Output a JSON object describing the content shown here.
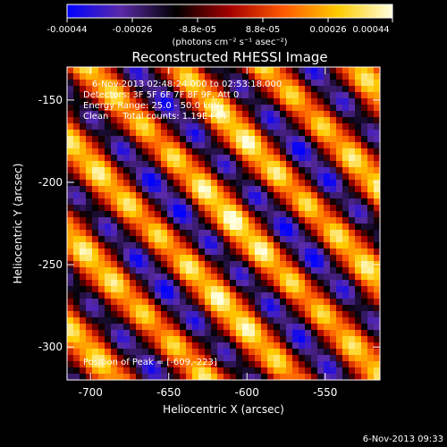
{
  "colorbar": {
    "ticks": [
      "-0.00044",
      "-0.00026",
      "-8.8e-05",
      "8.8e-05",
      "0.00026",
      "0.00044"
    ],
    "unit_label": "(photons cm⁻² s⁻¹ asec⁻²)",
    "range": [
      -0.00044,
      0.00044
    ],
    "colors": [
      "#0000ff",
      "#5a2aa8",
      "#000000",
      "#a40000",
      "#ff5a00",
      "#ffcc00",
      "#ffffe0"
    ]
  },
  "chart_data": {
    "type": "heatmap",
    "title": "Reconstructed RHESSI Image",
    "xlabel": "Heliocentric X (arcsec)",
    "ylabel": "Heliocentric Y (arcsec)",
    "xlim": [
      -715,
      -515
    ],
    "ylim": [
      -320,
      -130
    ],
    "xticks": [
      -700,
      -650,
      -600,
      -550
    ],
    "yticks": [
      -300,
      -250,
      -200,
      -150
    ],
    "xtick_labels": [
      "-700",
      "-650",
      "-600",
      "-550"
    ],
    "ytick_labels": [
      "-300",
      "-250",
      "-200",
      "-150"
    ],
    "annotations": [
      "6-Nov-2013 02:48:24.000 to 02:53:18.000",
      "Detectors: 3F 5F 6F 7F 8F 9F, Att 0",
      "Energy Range: 25.0 - 50.0 keV",
      "Clean     Total counts: 1.19E+04"
    ],
    "peak_label": "Position of Peak = [-609,-223]",
    "peak": [
      -609,
      -223
    ],
    "pattern": "diagonal fringes running from upper-left to lower-right, alternating positive (yellow/white) and negative (blue/purple) values"
  },
  "footer": {
    "timestamp": "6-Nov-2013 09:33"
  }
}
